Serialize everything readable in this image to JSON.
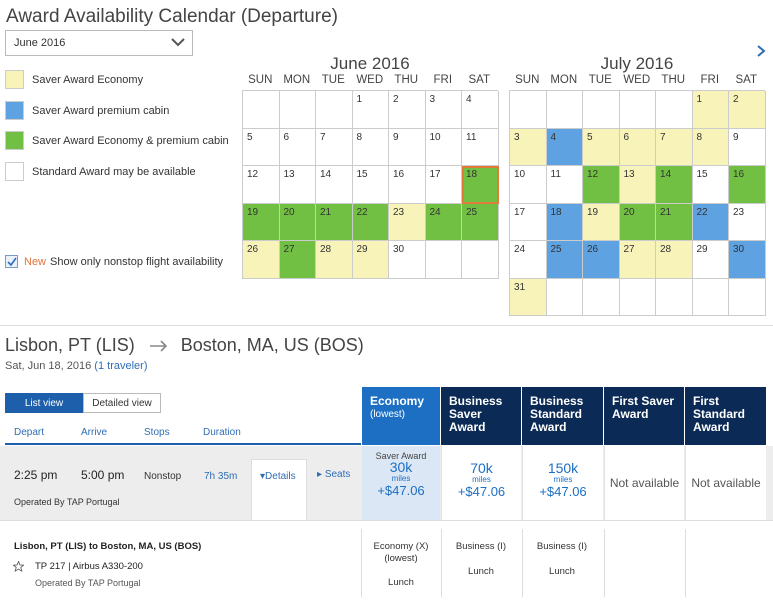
{
  "title": "Award Availability Calendar (Departure)",
  "month_select": {
    "value": "June 2016"
  },
  "legend": [
    {
      "label": "Saver Award Economy",
      "color": "#f8f4b9"
    },
    {
      "label": "Saver Award premium cabin",
      "color": "#5fa2e1"
    },
    {
      "label": "Saver Award Economy & premium cabin",
      "color": "#72c043"
    },
    {
      "label": "Standard Award may be available",
      "color": "#ffffff"
    }
  ],
  "nonstop": {
    "new": "New",
    "label": "Show only nonstop flight availability"
  },
  "calendars": [
    {
      "title": "June 2016",
      "dow": [
        "SUN",
        "MON",
        "TUE",
        "WED",
        "THU",
        "FRI",
        "SAT"
      ],
      "cells": [
        [
          "",
          ""
        ],
        [
          "",
          ""
        ],
        [
          "",
          ""
        ],
        [
          "1",
          ""
        ],
        [
          "2",
          ""
        ],
        [
          "3",
          ""
        ],
        [
          "4",
          ""
        ],
        [
          "5",
          ""
        ],
        [
          "6",
          ""
        ],
        [
          "7",
          ""
        ],
        [
          "8",
          ""
        ],
        [
          "9",
          ""
        ],
        [
          "10",
          ""
        ],
        [
          "11",
          ""
        ],
        [
          "12",
          ""
        ],
        [
          "13",
          ""
        ],
        [
          "14",
          ""
        ],
        [
          "15",
          ""
        ],
        [
          "16",
          ""
        ],
        [
          "17",
          ""
        ],
        [
          "18",
          "g sel"
        ],
        [
          "19",
          "g"
        ],
        [
          "20",
          "g"
        ],
        [
          "21",
          "g"
        ],
        [
          "22",
          "g"
        ],
        [
          "23",
          "y"
        ],
        [
          "24",
          "g"
        ],
        [
          "25",
          "g"
        ],
        [
          "26",
          "y"
        ],
        [
          "27",
          "g"
        ],
        [
          "28",
          "y"
        ],
        [
          "29",
          "y"
        ],
        [
          "30",
          ""
        ],
        [
          "",
          ""
        ],
        [
          "",
          ""
        ]
      ]
    },
    {
      "title": "July 2016",
      "dow": [
        "SUN",
        "MON",
        "TUE",
        "WED",
        "THU",
        "FRI",
        "SAT"
      ],
      "cells": [
        [
          "",
          ""
        ],
        [
          "",
          ""
        ],
        [
          "",
          ""
        ],
        [
          "",
          ""
        ],
        [
          "",
          ""
        ],
        [
          "1",
          "y"
        ],
        [
          "2",
          "y"
        ],
        [
          "3",
          "y"
        ],
        [
          "4",
          "b"
        ],
        [
          "5",
          "y"
        ],
        [
          "6",
          "y"
        ],
        [
          "7",
          "y"
        ],
        [
          "8",
          "y"
        ],
        [
          "9",
          ""
        ],
        [
          "10",
          ""
        ],
        [
          "11",
          ""
        ],
        [
          "12",
          "g"
        ],
        [
          "13",
          "y"
        ],
        [
          "14",
          "g"
        ],
        [
          "15",
          ""
        ],
        [
          "16",
          "g"
        ],
        [
          "17",
          ""
        ],
        [
          "18",
          "b"
        ],
        [
          "19",
          "y"
        ],
        [
          "20",
          "g"
        ],
        [
          "21",
          "g"
        ],
        [
          "22",
          "b"
        ],
        [
          "23",
          ""
        ],
        [
          "24",
          ""
        ],
        [
          "25",
          "b"
        ],
        [
          "26",
          "b"
        ],
        [
          "27",
          "y"
        ],
        [
          "28",
          "y"
        ],
        [
          "29",
          ""
        ],
        [
          "30",
          "b"
        ],
        [
          "31",
          "y"
        ],
        [
          "",
          ""
        ],
        [
          "",
          ""
        ],
        [
          "",
          ""
        ],
        [
          "",
          ""
        ],
        [
          "",
          ""
        ],
        [
          "",
          ""
        ]
      ]
    }
  ],
  "route": {
    "origin": "Lisbon, PT (LIS)",
    "destination": "Boston, MA, US (BOS)"
  },
  "subline": {
    "date": "Sat, Jun 18, 2016",
    "travelers": "(1 traveler)"
  },
  "view_tabs": {
    "list": "List view",
    "detailed": "Detailed view"
  },
  "columns": {
    "depart": "Depart",
    "arrive": "Arrive",
    "stops": "Stops",
    "duration": "Duration"
  },
  "fare_headers": [
    {
      "title": "Economy",
      "sub": "(lowest)"
    },
    {
      "title": "Business Saver Award",
      "sub": ""
    },
    {
      "title": "Business Standard Award",
      "sub": ""
    },
    {
      "title": "First Saver Award",
      "sub": ""
    },
    {
      "title": "First Standard Award",
      "sub": ""
    }
  ],
  "flight": {
    "depart": "2:25 pm",
    "arrive": "5:00 pm",
    "stops": "Nonstop",
    "duration": "7h 35m",
    "details": "Details",
    "seats": "Seats",
    "operated": "Operated By TAP Portugal"
  },
  "fares": [
    {
      "label": "Saver Award",
      "miles": "30k",
      "unit": "miles",
      "tax": "+$47.06"
    },
    {
      "label": "",
      "miles": "70k",
      "unit": "miles",
      "tax": "+$47.06"
    },
    {
      "label": "",
      "miles": "150k",
      "unit": "miles",
      "tax": "+$47.06"
    },
    {
      "na": "Not available"
    },
    {
      "na": "Not available"
    }
  ],
  "segment": {
    "route": "Lisbon, PT (LIS) to Boston, MA, US (BOS)",
    "flight": "TP 217 | Airbus A330-200",
    "operated": "Operated By TAP Portugal",
    "cabins": [
      {
        "cabin": "Economy (X) (lowest)",
        "meal": "Lunch"
      },
      {
        "cabin": "Business (I)",
        "meal": "Lunch"
      },
      {
        "cabin": "Business (I)",
        "meal": "Lunch"
      }
    ]
  }
}
